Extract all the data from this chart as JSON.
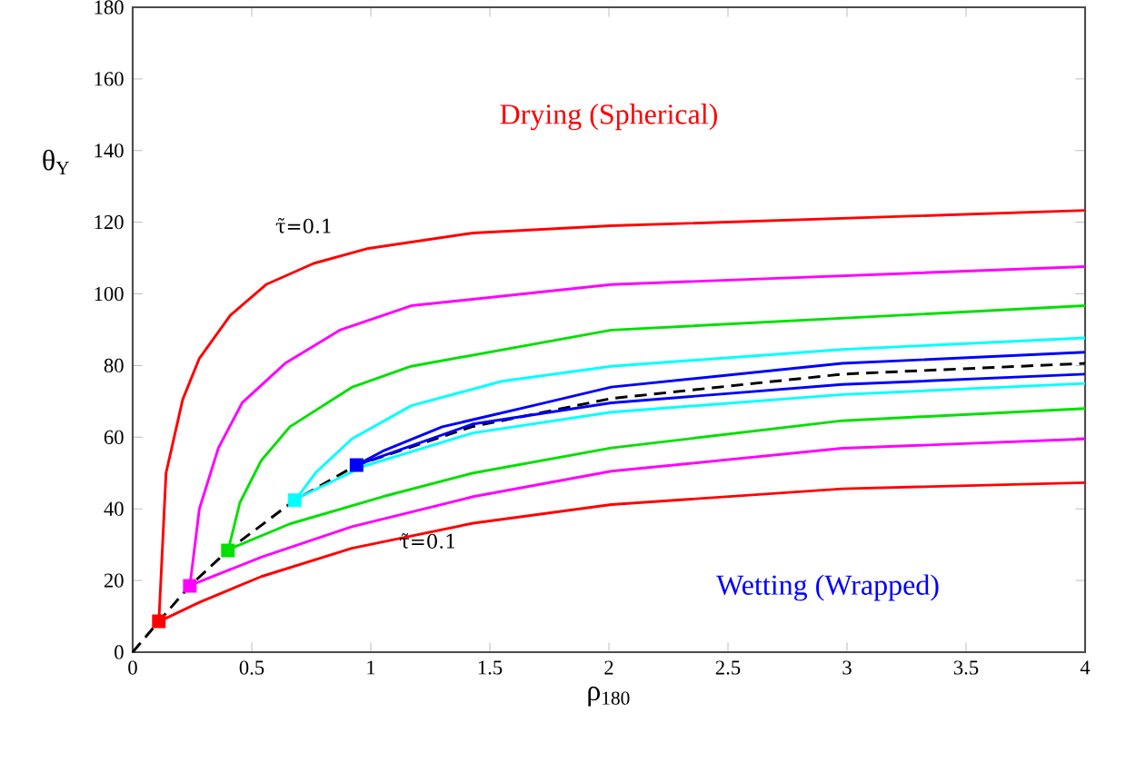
{
  "chart_data": {
    "type": "line",
    "xlabel": "ρ$_{180}$",
    "ylabel": "θ$_{Y}$",
    "xlim": [
      0,
      4
    ],
    "ylim": [
      0,
      180
    ],
    "xticks": [
      0,
      0.5,
      1,
      1.5,
      2,
      2.5,
      3,
      3.5,
      4
    ],
    "yticks": [
      0,
      20,
      40,
      60,
      80,
      100,
      120,
      140,
      160,
      180
    ],
    "grid": false,
    "annotations": [
      "Drying (Spherical)",
      "Wetting (Wrapped)",
      "τ̃=0.1",
      "τ̃=0.1"
    ],
    "series": [
      {
        "color": "#ff0000",
        "x": [
          0.11,
          0.14,
          0.21,
          0.28,
          0.41,
          0.56,
          0.76,
          0.99,
          1.43,
          2.01,
          4
        ],
        "values": [
          8.6,
          50,
          70.5,
          82,
          94,
          102.6,
          108.5,
          112.7,
          117,
          119,
          123.3
        ]
      },
      {
        "color": "#ff00ff",
        "x": [
          0.24,
          0.28,
          0.36,
          0.46,
          0.64,
          0.87,
          1.17,
          2.01,
          4
        ],
        "values": [
          18.4,
          40,
          57,
          69.6,
          80.6,
          89.9,
          96.7,
          102.6,
          107.6
        ]
      },
      {
        "color": "#00e000",
        "x": [
          0.4,
          0.45,
          0.54,
          0.66,
          0.92,
          1.17,
          2.01,
          4
        ],
        "values": [
          28.2,
          41.7,
          53.5,
          62.9,
          73.9,
          79.8,
          89.9,
          96.7
        ]
      },
      {
        "color": "#00ffff",
        "x": [
          0.68,
          0.77,
          0.92,
          1.17,
          1.55,
          2.01,
          2.98,
          4
        ],
        "values": [
          42.2,
          50.2,
          59.5,
          68.8,
          75.6,
          79.8,
          84.5,
          87.7
        ]
      },
      {
        "color": "#0000ff",
        "x": [
          0.94,
          1.05,
          1.3,
          1.68,
          2.01,
          2.98,
          4
        ],
        "values": [
          52.2,
          56.1,
          62.9,
          68.8,
          74,
          80.6,
          83.7
        ]
      },
      {
        "color": "#000000",
        "line_style": "dashed",
        "x": [
          0,
          0.11,
          0.24,
          0.4,
          0.68,
          0.94,
          1.43,
          2.01,
          2.98,
          4
        ],
        "values": [
          0,
          8.6,
          18.5,
          28.4,
          42.4,
          52.2,
          63,
          70.8,
          77.6,
          80.6
        ]
      },
      {
        "color": "#0000ff",
        "x": [
          0.94,
          1.43,
          2.01,
          2.98,
          4
        ],
        "values": [
          52.2,
          63.7,
          69.6,
          74.7,
          77.6
        ]
      },
      {
        "color": "#00ffff",
        "x": [
          0.68,
          0.97,
          1.43,
          2.01,
          2.98,
          4
        ],
        "values": [
          42.6,
          51.9,
          61.2,
          67,
          71.9,
          75
        ]
      },
      {
        "color": "#00e000",
        "x": [
          0.4,
          0.66,
          1.05,
          1.43,
          2.01,
          2.98,
          4
        ],
        "values": [
          28.6,
          35.8,
          43.4,
          50,
          57,
          64.6,
          68
        ]
      },
      {
        "color": "#ff00ff",
        "x": [
          0.24,
          0.54,
          0.92,
          1.43,
          2.01,
          2.98,
          4
        ],
        "values": [
          18.6,
          26.5,
          35,
          43.4,
          50.5,
          56.9,
          59.5
        ]
      },
      {
        "color": "#ff0000",
        "x": [
          0.11,
          0.28,
          0.54,
          0.92,
          1.43,
          2.01,
          2.98,
          4
        ],
        "values": [
          8.5,
          13.9,
          21.1,
          29,
          36,
          41.2,
          45.6,
          47.3
        ]
      },
      {
        "type": "scatter",
        "marker": "square",
        "x": [
          0.11,
          0.24,
          0.4,
          0.68,
          0.94
        ],
        "values": [
          8.6,
          18.5,
          28.4,
          42.4,
          52.2
        ],
        "colors": [
          "#ff0000",
          "#ff00ff",
          "#00e000",
          "#00ffff",
          "#0000ff"
        ]
      }
    ]
  }
}
